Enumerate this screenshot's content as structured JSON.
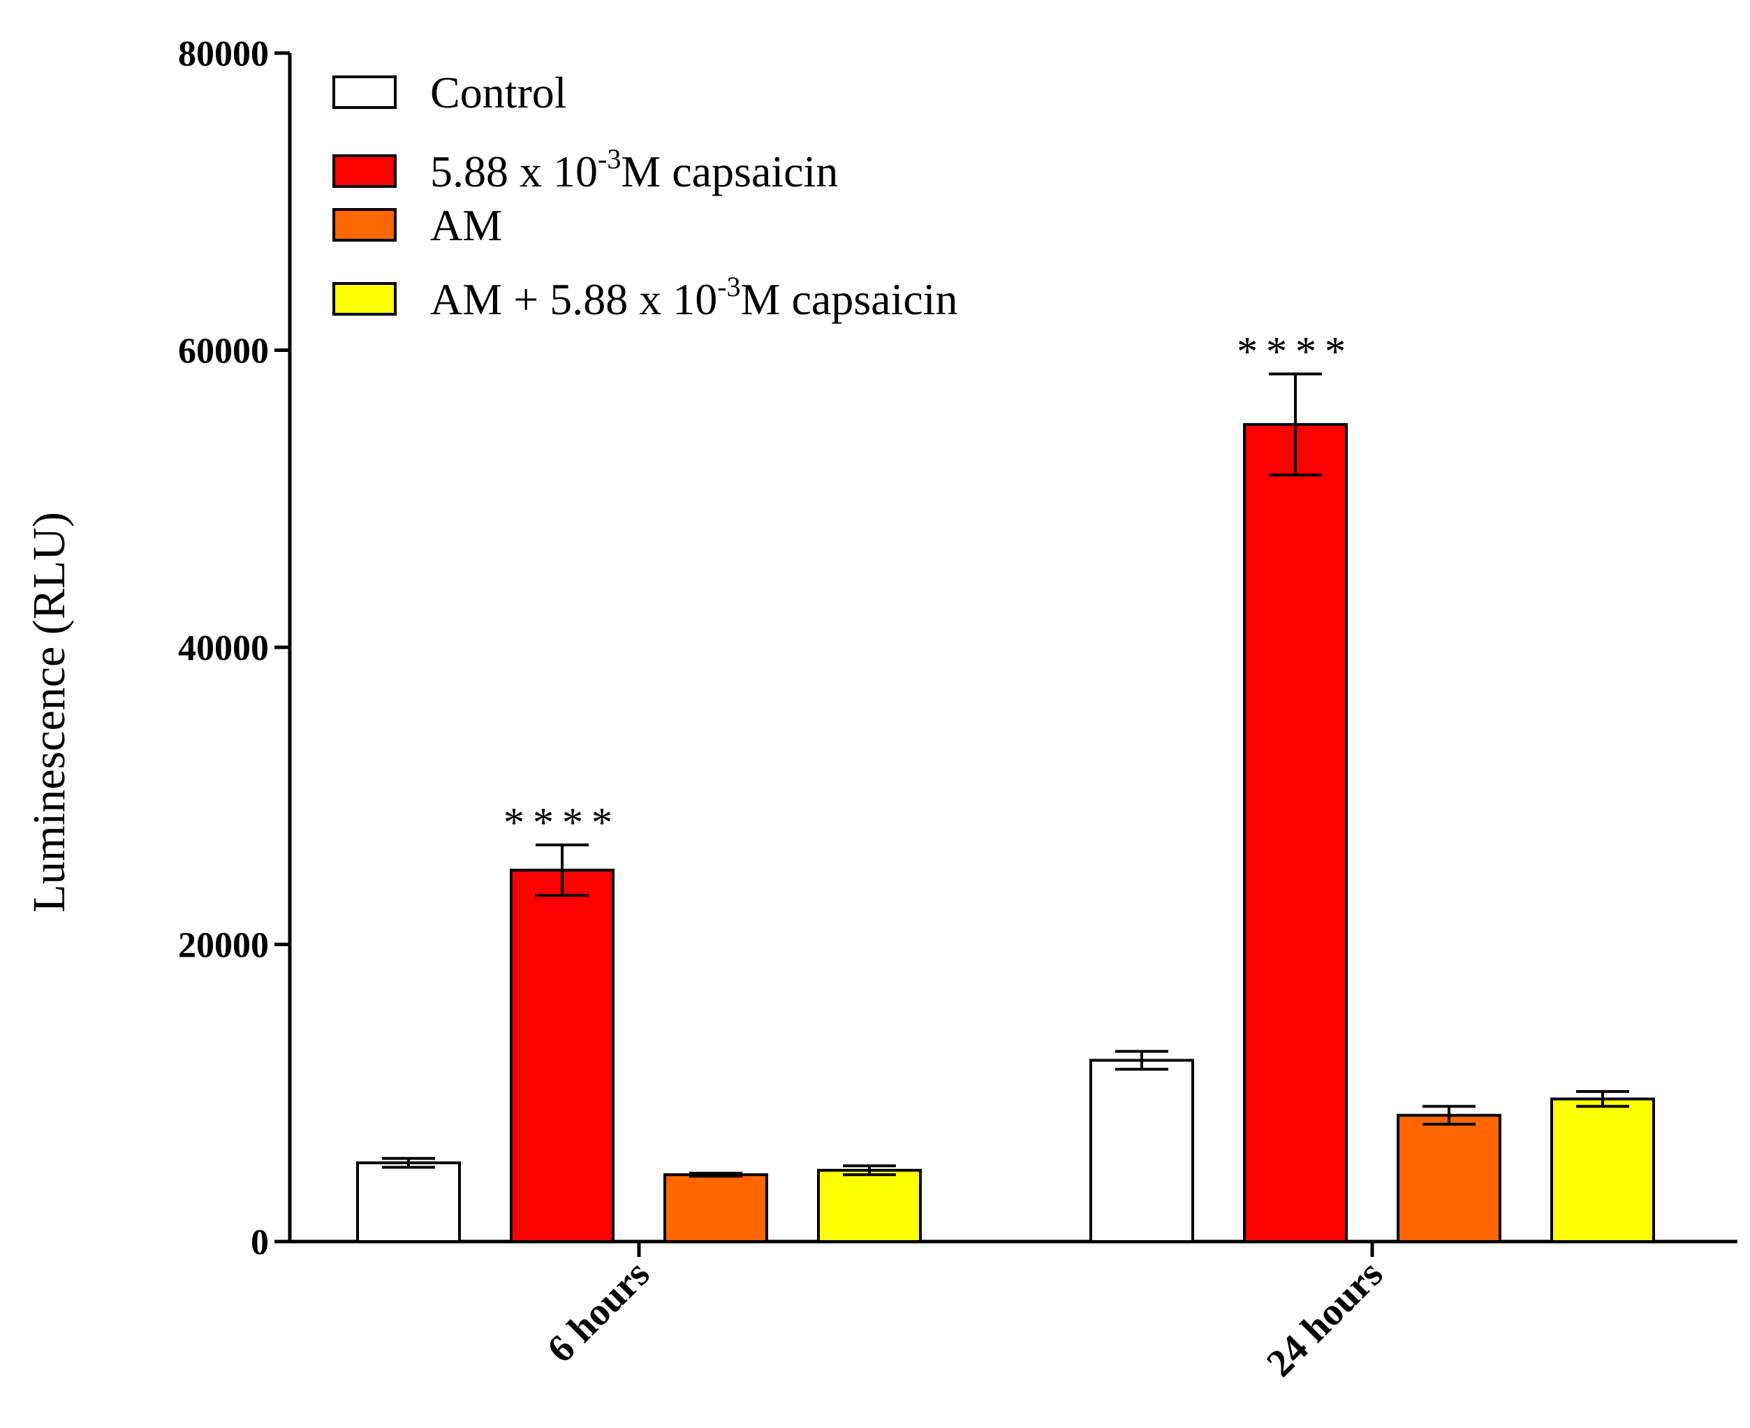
{
  "chart_data": {
    "type": "bar",
    "title": "",
    "xlabel": "",
    "ylabel": "Luminescence (RLU)",
    "ylim": [
      0,
      80000
    ],
    "yticks": [
      0,
      20000,
      40000,
      60000,
      80000
    ],
    "ytick_labels": [
      "0",
      "20000",
      "40000",
      "60000",
      "80000"
    ],
    "categories": [
      "6 hours",
      "24 hours"
    ],
    "series": [
      {
        "name": "Control",
        "legend": {
          "pre": "Control",
          "sup": "",
          "post": ""
        },
        "color": "#ffffff",
        "values": [
          5300,
          12200
        ],
        "errors": [
          300,
          600
        ]
      },
      {
        "name": "5.88 x 10-3M capsaicin",
        "legend": {
          "pre": "5.88 x 10",
          "sup": "-3",
          "post": "M capsaicin"
        },
        "color": "#ff0000",
        "values": [
          25000,
          55000
        ],
        "errors": [
          1700,
          3400
        ]
      },
      {
        "name": "AM",
        "legend": {
          "pre": "AM",
          "sup": "",
          "post": ""
        },
        "color": "#ff6600",
        "values": [
          4500,
          8500
        ],
        "errors": [
          100,
          600
        ]
      },
      {
        "name": "AM + 5.88 x 10-3M capsaicin",
        "legend": {
          "pre": "AM + 5.88 x 10",
          "sup": "-3",
          "post": "M capsaicin"
        },
        "color": "#ffff00",
        "values": [
          4800,
          9600
        ],
        "errors": [
          300,
          500
        ]
      }
    ],
    "annotations": [
      {
        "category": "6 hours",
        "series": "5.88 x 10-3M capsaicin",
        "text": "****"
      },
      {
        "category": "24 hours",
        "series": "5.88 x 10-3M capsaicin",
        "text": "****"
      }
    ],
    "legend_position": "top-left"
  }
}
